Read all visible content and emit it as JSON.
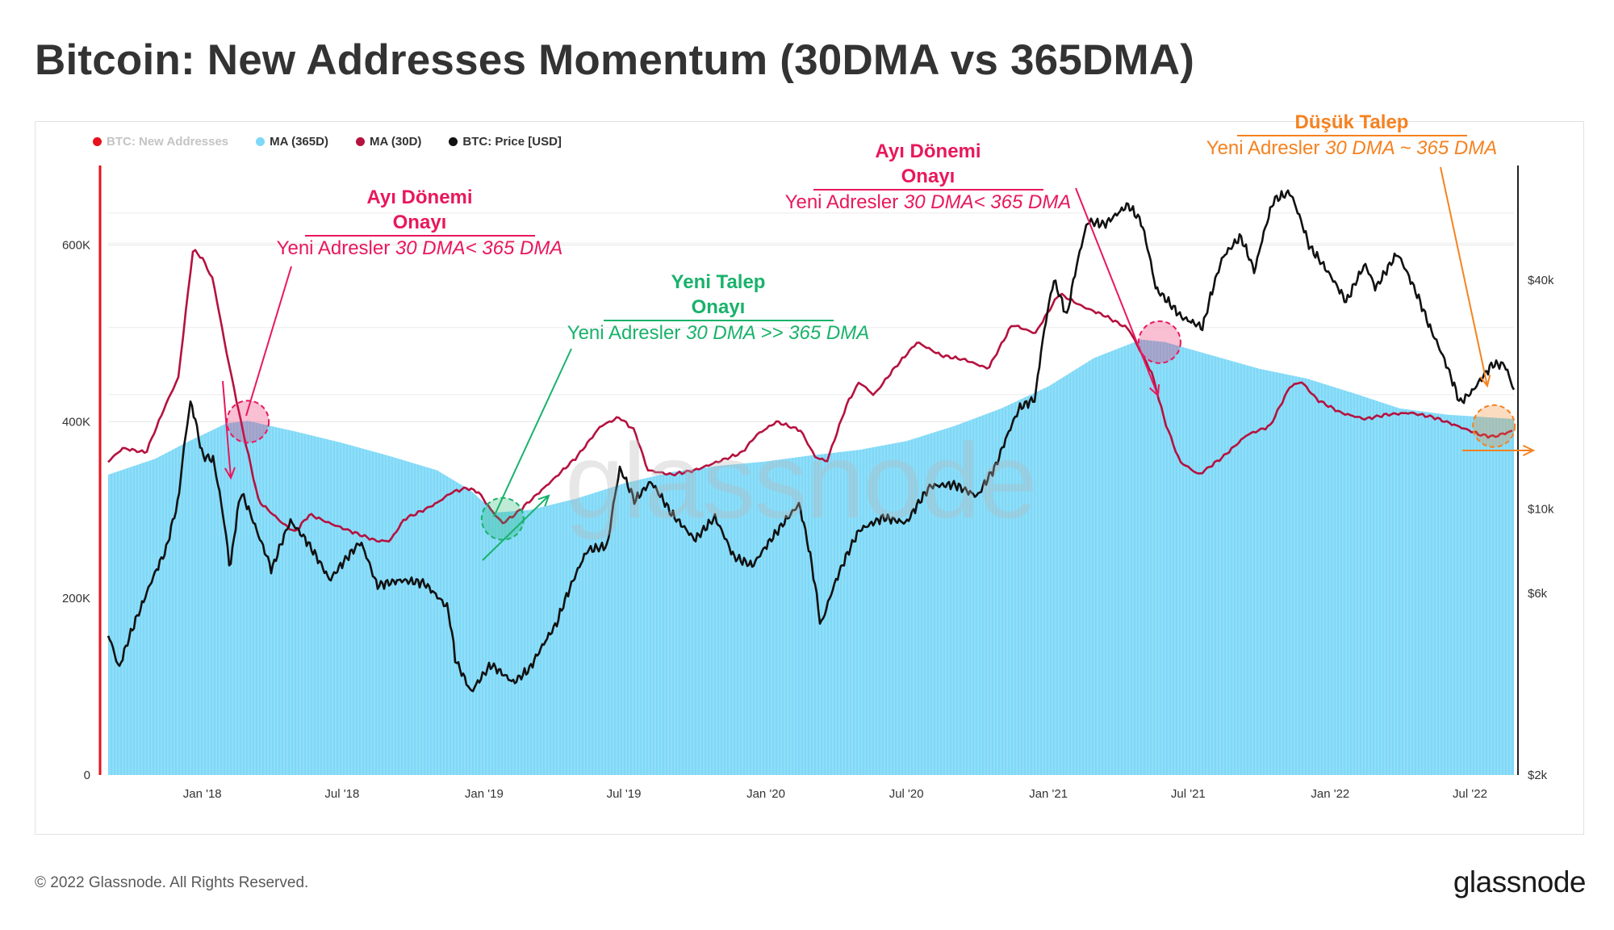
{
  "page": {
    "title": "Bitcoin: New Addresses Momentum (30DMA vs 365DMA)",
    "copyright": "© 2022 Glassnode. All Rights Reserved.",
    "logo": "glassnode",
    "watermark": "glassnode"
  },
  "legend": [
    {
      "label": "BTC: New Addresses",
      "color": "#e8101a",
      "muted": true
    },
    {
      "label": "MA (365D)",
      "color": "#7fd8f7",
      "muted": false
    },
    {
      "label": "MA (30D)",
      "color": "#b5123f",
      "muted": false
    },
    {
      "label": "BTC: Price [USD]",
      "color": "#111111",
      "muted": false
    }
  ],
  "annotations": {
    "bear1": {
      "title_line1": "Ayı Dönemi",
      "title_line2": "Onayı",
      "subtitle_plain": "Yeni Adresler ",
      "subtitle_italic": "30 DMA< 365 DMA"
    },
    "demand": {
      "title_line1": "Yeni Talep",
      "title_line2": "Onayı",
      "subtitle_plain": "Yeni Adresler ",
      "subtitle_italic": "30 DMA >> 365 DMA"
    },
    "bear2": {
      "title_line1": "Ayı Dönemi",
      "title_line2": "Onayı",
      "subtitle_plain": "Yeni Adresler ",
      "subtitle_italic": "30 DMA< 365 DMA"
    },
    "low_demand": {
      "title_line1": "Düşük Talep",
      "subtitle_plain": "Yeni Adresler ",
      "subtitle_italic": "30 DMA ~ 365 DMA"
    }
  },
  "colors": {
    "ma365_fill": "#7fd8f7",
    "ma30_line": "#b5123f",
    "price_line": "#111111",
    "pink_annotation": "#e8185c",
    "green_annotation": "#19b26b",
    "orange_annotation": "#f58220"
  },
  "chart_data": {
    "type": "line",
    "title": "Bitcoin: New Addresses Momentum (30DMA vs 365DMA)",
    "x_range": [
      "2017-09-01",
      "2022-08-27"
    ],
    "x_ticks": [
      "Jan '18",
      "Jul '18",
      "Jan '19",
      "Jul '19",
      "Jan '20",
      "Jul '20",
      "Jan '21",
      "Jul '21",
      "Jan '22",
      "Jul '22"
    ],
    "y_left": {
      "ticks": [
        "0",
        "200K",
        "400K",
        "600K"
      ],
      "tick_values": [
        0,
        200000,
        400000,
        600000
      ],
      "range": [
        0,
        690000
      ]
    },
    "y_right": {
      "scale": "log",
      "ticks": [
        "$2k",
        "$6k",
        "$10k",
        "$40k"
      ],
      "tick_values": [
        2000,
        6000,
        10000,
        40000
      ],
      "range": [
        2000,
        80000
      ]
    },
    "series": [
      {
        "name": "MA (365D)",
        "style": "area",
        "axis": "left",
        "points": [
          [
            "2017-09-01",
            340000
          ],
          [
            "2017-11-01",
            358000
          ],
          [
            "2017-12-15",
            378000
          ],
          [
            "2018-02-01",
            398000
          ],
          [
            "2018-03-01",
            401000
          ],
          [
            "2018-05-01",
            389000
          ],
          [
            "2018-07-01",
            376000
          ],
          [
            "2018-09-01",
            361000
          ],
          [
            "2018-11-01",
            345000
          ],
          [
            "2018-12-15",
            322000
          ],
          [
            "2019-01-15",
            297000
          ],
          [
            "2019-03-01",
            300000
          ],
          [
            "2019-05-01",
            313000
          ],
          [
            "2019-07-01",
            330000
          ],
          [
            "2019-09-01",
            343000
          ],
          [
            "2019-11-01",
            350000
          ],
          [
            "2020-01-01",
            355000
          ],
          [
            "2020-03-01",
            362000
          ],
          [
            "2020-05-01",
            368000
          ],
          [
            "2020-07-01",
            378000
          ],
          [
            "2020-09-01",
            395000
          ],
          [
            "2020-11-01",
            415000
          ],
          [
            "2021-01-01",
            440000
          ],
          [
            "2021-03-01",
            472000
          ],
          [
            "2021-05-01",
            493000
          ],
          [
            "2021-06-01",
            490000
          ],
          [
            "2021-08-01",
            475000
          ],
          [
            "2021-10-01",
            460000
          ],
          [
            "2021-12-01",
            449000
          ],
          [
            "2022-02-01",
            432000
          ],
          [
            "2022-04-01",
            415000
          ],
          [
            "2022-06-01",
            408000
          ],
          [
            "2022-08-27",
            403000
          ]
        ]
      },
      {
        "name": "MA (30D)",
        "style": "line",
        "axis": "left",
        "points": [
          [
            "2017-09-01",
            355000
          ],
          [
            "2017-09-20",
            370000
          ],
          [
            "2017-10-20",
            365000
          ],
          [
            "2017-11-15",
            420000
          ],
          [
            "2017-12-01",
            450000
          ],
          [
            "2017-12-10",
            520000
          ],
          [
            "2017-12-20",
            595000
          ],
          [
            "2018-01-01",
            585000
          ],
          [
            "2018-01-15",
            560000
          ],
          [
            "2018-02-01",
            480000
          ],
          [
            "2018-02-20",
            400000
          ],
          [
            "2018-03-15",
            310000
          ],
          [
            "2018-04-15",
            285000
          ],
          [
            "2018-05-01",
            275000
          ],
          [
            "2018-05-20",
            295000
          ],
          [
            "2018-06-15",
            285000
          ],
          [
            "2018-07-15",
            275000
          ],
          [
            "2018-08-15",
            265000
          ],
          [
            "2018-09-01",
            265000
          ],
          [
            "2018-09-20",
            290000
          ],
          [
            "2018-10-15",
            300000
          ],
          [
            "2018-11-01",
            308000
          ],
          [
            "2018-11-20",
            320000
          ],
          [
            "2018-12-10",
            325000
          ],
          [
            "2018-12-25",
            320000
          ],
          [
            "2019-01-10",
            300000
          ],
          [
            "2019-01-25",
            285000
          ],
          [
            "2019-02-10",
            295000
          ],
          [
            "2019-03-01",
            310000
          ],
          [
            "2019-04-01",
            335000
          ],
          [
            "2019-05-01",
            360000
          ],
          [
            "2019-06-01",
            395000
          ],
          [
            "2019-06-25",
            405000
          ],
          [
            "2019-07-15",
            390000
          ],
          [
            "2019-08-01",
            345000
          ],
          [
            "2019-09-01",
            340000
          ],
          [
            "2019-10-01",
            345000
          ],
          [
            "2019-11-01",
            355000
          ],
          [
            "2019-12-01",
            365000
          ],
          [
            "2019-12-20",
            385000
          ],
          [
            "2020-01-15",
            400000
          ],
          [
            "2020-02-15",
            390000
          ],
          [
            "2020-03-05",
            360000
          ],
          [
            "2020-03-20",
            355000
          ],
          [
            "2020-04-15",
            420000
          ],
          [
            "2020-05-01",
            445000
          ],
          [
            "2020-05-20",
            430000
          ],
          [
            "2020-06-15",
            460000
          ],
          [
            "2020-07-15",
            490000
          ],
          [
            "2020-08-15",
            475000
          ],
          [
            "2020-09-15",
            470000
          ],
          [
            "2020-10-15",
            460000
          ],
          [
            "2020-11-15",
            510000
          ],
          [
            "2020-12-15",
            500000
          ],
          [
            "2021-01-15",
            545000
          ],
          [
            "2021-02-15",
            530000
          ],
          [
            "2021-03-15",
            520000
          ],
          [
            "2021-04-15",
            505000
          ],
          [
            "2021-05-15",
            455000
          ],
          [
            "2021-06-01",
            400000
          ],
          [
            "2021-06-20",
            355000
          ],
          [
            "2021-07-15",
            340000
          ],
          [
            "2021-08-15",
            360000
          ],
          [
            "2021-09-15",
            385000
          ],
          [
            "2021-10-15",
            395000
          ],
          [
            "2021-11-10",
            440000
          ],
          [
            "2021-11-25",
            445000
          ],
          [
            "2021-12-15",
            425000
          ],
          [
            "2022-01-15",
            410000
          ],
          [
            "2022-02-15",
            403000
          ],
          [
            "2022-03-15",
            408000
          ],
          [
            "2022-04-15",
            410000
          ],
          [
            "2022-05-15",
            405000
          ],
          [
            "2022-06-15",
            395000
          ],
          [
            "2022-07-15",
            385000
          ],
          [
            "2022-08-01",
            383000
          ],
          [
            "2022-08-27",
            390000
          ]
        ]
      },
      {
        "name": "BTC: Price [USD]",
        "style": "line",
        "axis": "right",
        "points": [
          [
            "2017-09-01",
            4700
          ],
          [
            "2017-09-15",
            3800
          ],
          [
            "2017-10-15",
            5600
          ],
          [
            "2017-11-15",
            7800
          ],
          [
            "2017-12-01",
            10500
          ],
          [
            "2017-12-17",
            19200
          ],
          [
            "2018-01-01",
            13800
          ],
          [
            "2018-01-15",
            13500
          ],
          [
            "2018-02-06",
            6900
          ],
          [
            "2018-02-20",
            11100
          ],
          [
            "2018-03-15",
            8500
          ],
          [
            "2018-04-01",
            6900
          ],
          [
            "2018-04-25",
            9300
          ],
          [
            "2018-05-15",
            8300
          ],
          [
            "2018-06-15",
            6500
          ],
          [
            "2018-07-25",
            8200
          ],
          [
            "2018-08-15",
            6300
          ],
          [
            "2018-09-15",
            6500
          ],
          [
            "2018-10-15",
            6400
          ],
          [
            "2018-11-15",
            5500
          ],
          [
            "2018-11-25",
            4000
          ],
          [
            "2018-12-15",
            3300
          ],
          [
            "2019-01-10",
            3900
          ],
          [
            "2019-02-08",
            3500
          ],
          [
            "2019-03-01",
            3800
          ],
          [
            "2019-04-05",
            5000
          ],
          [
            "2019-05-15",
            7800
          ],
          [
            "2019-06-10",
            8000
          ],
          [
            "2019-06-26",
            12800
          ],
          [
            "2019-07-15",
            10500
          ],
          [
            "2019-08-05",
            11800
          ],
          [
            "2019-09-01",
            9700
          ],
          [
            "2019-10-01",
            8300
          ],
          [
            "2019-10-27",
            9500
          ],
          [
            "2019-11-20",
            7500
          ],
          [
            "2019-12-15",
            7100
          ],
          [
            "2020-01-15",
            8700
          ],
          [
            "2020-02-13",
            10300
          ],
          [
            "2020-03-12",
            4900
          ],
          [
            "2020-04-01",
            6500
          ],
          [
            "2020-05-01",
            8800
          ],
          [
            "2020-06-01",
            9500
          ],
          [
            "2020-07-01",
            9200
          ],
          [
            "2020-08-01",
            11500
          ],
          [
            "2020-09-01",
            11600
          ],
          [
            "2020-10-01",
            10800
          ],
          [
            "2020-10-25",
            13000
          ],
          [
            "2020-11-25",
            18500
          ],
          [
            "2020-12-15",
            19500
          ],
          [
            "2021-01-08",
            40000
          ],
          [
            "2021-01-25",
            32000
          ],
          [
            "2021-02-21",
            57000
          ],
          [
            "2021-03-15",
            56000
          ],
          [
            "2021-04-14",
            63000
          ],
          [
            "2021-05-01",
            57000
          ],
          [
            "2021-05-20",
            38000
          ],
          [
            "2021-06-22",
            32000
          ],
          [
            "2021-07-20",
            30000
          ],
          [
            "2021-08-15",
            46000
          ],
          [
            "2021-09-07",
            52000
          ],
          [
            "2021-09-25",
            42000
          ],
          [
            "2021-10-20",
            65000
          ],
          [
            "2021-11-10",
            68000
          ],
          [
            "2021-12-05",
            49000
          ],
          [
            "2022-01-22",
            35000
          ],
          [
            "2022-02-15",
            44000
          ],
          [
            "2022-03-01",
            38000
          ],
          [
            "2022-03-29",
            47000
          ],
          [
            "2022-04-15",
            40000
          ],
          [
            "2022-05-10",
            30000
          ],
          [
            "2022-06-18",
            19000
          ],
          [
            "2022-07-05",
            20500
          ],
          [
            "2022-07-30",
            24000
          ],
          [
            "2022-08-15",
            24000
          ],
          [
            "2022-08-27",
            20500
          ]
        ]
      }
    ],
    "annotations": [
      {
        "type": "circle",
        "date": "2018-03-01",
        "value": 400000,
        "color": "pink"
      },
      {
        "type": "circle",
        "date": "2019-01-25",
        "value": 290000,
        "color": "green"
      },
      {
        "type": "circle",
        "date": "2021-05-25",
        "value": 490000,
        "color": "pink"
      },
      {
        "type": "circle",
        "date": "2022-08-01",
        "value": 395000,
        "color": "orange"
      }
    ]
  }
}
